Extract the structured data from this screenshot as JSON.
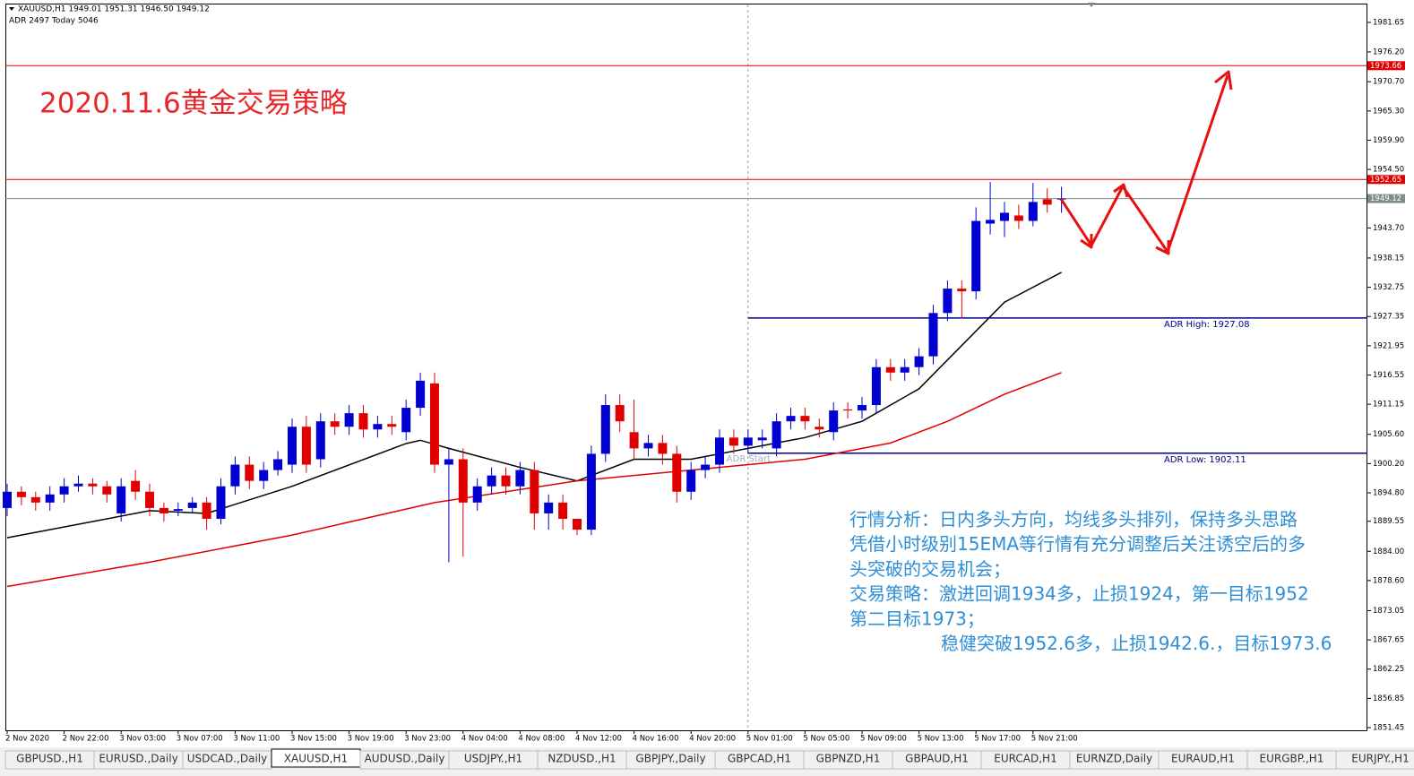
{
  "chart_data": {
    "type": "candlestick",
    "header": [
      "XAUUSD,H1  1949.01 1951.31 1946.50 1949.12",
      "ADR 2497  Today 5046"
    ],
    "title": "2020.11.6黄金交易策略",
    "title_color": "#e8262a",
    "notes": [
      "行情分析：日内多头方向，均线多头排列，保持多头思路",
      "凭借小时级别15EMA等行情有充分调整后关注诱空后的多",
      "头突破的交易机会；",
      "交易策略：激进回调1934多，止损1924，第一目标1952",
      "第二目标1973；",
      "稳健突破1952.6多，止损1942.6.，目标1973.6"
    ],
    "notes_color": "#2e8fd6",
    "up_color": "#0000d0",
    "down_color": "#e00000",
    "ylim": [
      1851.45,
      1981.65
    ],
    "yticks": [
      1981.65,
      {
        "value": 1976.2,
        "label": "1976.20"
      },
      {
        "value": 1970.7,
        "label": "1970.70"
      },
      {
        "value": 1965.3,
        "label": "1965.30"
      },
      {
        "value": 1959.9,
        "label": "1959.90"
      },
      {
        "value": 1954.5,
        "label": "1954.50"
      },
      {
        "value": 1943.7,
        "label": "1943.70"
      },
      1938.15,
      1932.75,
      1927.35,
      1921.95,
      1916.55,
      1911.15,
      {
        "value": 1905.6,
        "label": "1905.60"
      },
      {
        "value": 1900.2,
        "label": "1900.20"
      },
      {
        "value": 1894.8,
        "label": "1894.80"
      },
      1889.55,
      {
        "value": 1884,
        "label": "1884.00"
      },
      {
        "value": 1878.6,
        "label": "1878.60"
      },
      1873.05,
      1867.65,
      1862.25,
      1856.85,
      1851.45
    ],
    "xticks": [
      {
        "value": 0,
        "label": "2 Nov 2020"
      },
      {
        "value": 4,
        "label": "2 Nov 22:00"
      },
      {
        "value": 8,
        "label": "3 Nov 03:00"
      },
      {
        "value": 12,
        "label": "3 Nov 07:00"
      },
      {
        "value": 16,
        "label": "3 Nov 11:00"
      },
      {
        "value": 20,
        "label": "3 Nov 15:00"
      },
      {
        "value": 24,
        "label": "3 Nov 19:00"
      },
      {
        "value": 28,
        "label": "3 Nov 23:00"
      },
      {
        "value": 32,
        "label": "4 Nov 04:00"
      },
      {
        "value": 36,
        "label": "4 Nov 08:00"
      },
      {
        "value": 40,
        "label": "4 Nov 12:00"
      },
      {
        "value": 44,
        "label": "4 Nov 16:00"
      },
      {
        "value": 48,
        "label": "4 Nov 20:00"
      },
      {
        "value": 52,
        "label": "5 Nov 01:00"
      },
      {
        "value": 56,
        "label": "5 Nov 05:00"
      },
      {
        "value": 60,
        "label": "5 Nov 09:00"
      },
      {
        "value": 64,
        "label": "5 Nov 13:00"
      },
      {
        "value": 68,
        "label": "5 Nov 17:00"
      },
      {
        "value": 72,
        "label": "5 Nov 21:00"
      }
    ],
    "open": [
      1892,
      1895,
      1894,
      1893,
      1894.5,
      1896,
      1896.5,
      1896,
      1891,
      1897,
      1895,
      1892,
      1891.5,
      1892,
      1893,
      1890,
      1896,
      1900,
      1897,
      1899,
      1900,
      1907,
      1901,
      1908,
      1907,
      1909.5,
      1906.5,
      1907.5,
      1906,
      1910.5,
      1915,
      1900,
      1901,
      1893,
      1896,
      1898,
      1896,
      1899,
      1891,
      1893,
      1890,
      1888,
      1902,
      1911,
      1906,
      1903,
      1904,
      1902,
      1895,
      1899,
      1900,
      1905,
      1903.5,
      1904.5,
      1903,
      1908,
      1909,
      1907,
      1906,
      1910.2,
      1910,
      1911,
      1918,
      1917,
      1918,
      1920,
      1928,
      1932.5,
      1932,
      1944.5,
      1945,
      1946,
      1945,
      1949,
      1949.01
    ],
    "high": [
      1896.5,
      1896,
      1895,
      1896,
      1897.5,
      1898,
      1897.5,
      1897,
      1897.5,
      1899,
      1896.5,
      1893,
      1893,
      1894,
      1894,
      1897.5,
      1901.5,
      1901.5,
      1900.5,
      1902.5,
      1908.5,
      1909,
      1909.5,
      1909.5,
      1911,
      1911,
      1909,
      1909,
      1912,
      1917,
      1917,
      1903,
      1903,
      1897.5,
      1899.5,
      1899.5,
      1900.5,
      1900.5,
      1894.5,
      1894.5,
      1890,
      1903.5,
      1913,
      1913,
      1912,
      1905.5,
      1905.5,
      1903.5,
      1900.5,
      1901.5,
      1906.5,
      1906.5,
      1906.5,
      1906.5,
      1909.5,
      1910.5,
      1910.5,
      1908.5,
      1911.5,
      1911.5,
      1912.5,
      1919.5,
      1919.5,
      1919.5,
      1921.5,
      1929.5,
      1934,
      1934,
      1947.5,
      1952.2,
      1948.5,
      1948,
      1952,
      1951,
      1951.31
    ],
    "low": [
      1890.5,
      1892.5,
      1891.5,
      1891.5,
      1893,
      1895,
      1894.5,
      1893,
      1889.5,
      1893.5,
      1890.5,
      1889.5,
      1890.5,
      1891,
      1888,
      1889,
      1894.5,
      1895.5,
      1895.5,
      1898,
      1898.5,
      1898.5,
      1899.5,
      1905.5,
      1905.5,
      1905,
      1905,
      1905.5,
      1904.5,
      1909,
      1898.5,
      1882,
      1883,
      1891.5,
      1894.5,
      1894.5,
      1894.5,
      1888,
      1888,
      1888,
      1887,
      1887,
      1900.5,
      1906,
      1901,
      1901.5,
      1900,
      1893,
      1893.5,
      1897.5,
      1898.5,
      1902,
      1902,
      1903,
      1901.5,
      1906.5,
      1906.5,
      1905,
      1904.5,
      1908.5,
      1908.5,
      1909.5,
      1915.5,
      1915.5,
      1916.5,
      1918.5,
      1926.5,
      1927,
      1930.5,
      1942.5,
      1942,
      1943.5,
      1944,
      1946.5,
      1946.5
    ],
    "close": [
      1895,
      1894,
      1893,
      1894.5,
      1896,
      1896.5,
      1896,
      1894.5,
      1896,
      1895,
      1892,
      1891,
      1891.8,
      1893,
      1890,
      1896,
      1900,
      1897,
      1899,
      1901,
      1907,
      1900,
      1908,
      1907,
      1909.5,
      1906.5,
      1907.5,
      1907,
      1910.5,
      1915.5,
      1900,
      1901,
      1893,
      1896,
      1898,
      1896,
      1899,
      1891,
      1893,
      1890,
      1888,
      1902,
      1911,
      1908,
      1903,
      1904,
      1902,
      1895,
      1899,
      1900,
      1905,
      1903.5,
      1905,
      1905,
      1908,
      1909,
      1908,
      1906.5,
      1910,
      1910,
      1911,
      1918,
      1917,
      1918,
      1920,
      1928,
      1932.5,
      1932,
      1945,
      1945.2,
      1946.5,
      1945,
      1948.5,
      1948,
      1949.12
    ],
    "lines": [
      {
        "color": "#000000",
        "x": [
          0,
          10,
          14,
          20,
          28,
          29,
          31,
          36,
          40,
          44,
          48,
          52,
          56,
          60,
          64,
          67,
          70,
          74
        ],
        "values": [
          1886.5,
          1891.5,
          1891,
          1896,
          1903.9,
          1904.5,
          1903,
          1899.5,
          1897,
          1901,
          1901,
          1903,
          1905,
          1908,
          1914,
          1922,
          1930,
          1935.5
        ]
      },
      {
        "color": "#e00000",
        "x": [
          0,
          10,
          20,
          30,
          40,
          48,
          56,
          62,
          66,
          70,
          74
        ],
        "values": [
          1877.5,
          1882,
          1887,
          1893,
          1897,
          1899,
          1901,
          1904,
          1908,
          1913,
          1917
        ]
      }
    ],
    "levels": [
      {
        "value": 1973.66,
        "color": "#e00000"
      },
      {
        "value": 1952.65,
        "color": "#e00000"
      },
      {
        "value": 1949.12,
        "color": "#7f8c8d"
      },
      {
        "value": 1927.08,
        "color": "#00008b",
        "start": 52,
        "label": "ADR High: 1927.08"
      },
      {
        "value": 1902.11,
        "color": "#00008b",
        "start": 52,
        "label": "ADR Low: 1902.11"
      }
    ],
    "marker": {
      "x": 52,
      "label": "ADR Start"
    },
    "tabs": [
      "GBPUSD.,H1",
      "EURUSD.,Daily",
      "USDCAD.,Daily",
      "XAUUSD,H1",
      "AUDUSD.,Daily",
      "USDJPY.,H1",
      "NZDUSD.,H1",
      "GBPJPY.,Daily",
      "GBPCAD,H1",
      "GBPNZD,H1",
      "GBPAUD,H1",
      "EURCAD,H1",
      "EURNZD,Daily",
      "EURAUD,H1",
      "EURGBP.,H1",
      "EURJPY.,H1"
    ],
    "active_tab": 3
  }
}
